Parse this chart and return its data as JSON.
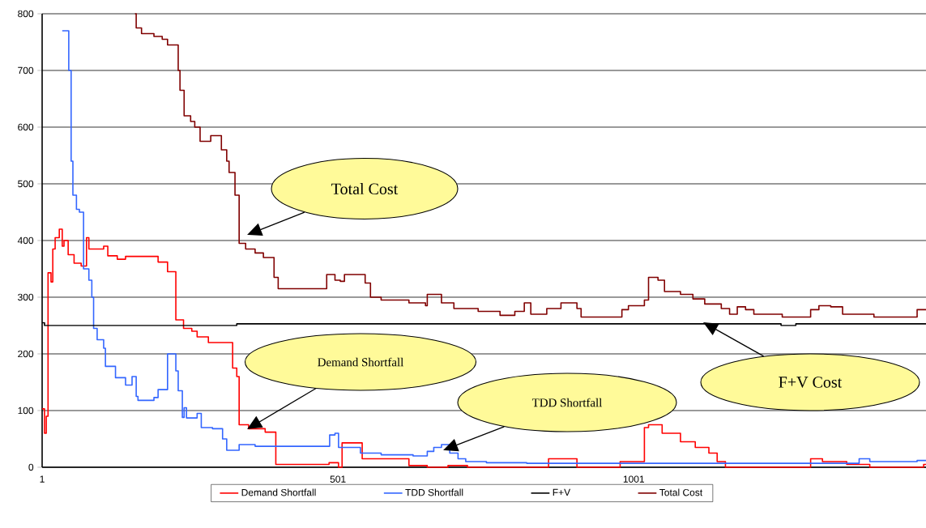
{
  "chart_data": {
    "type": "step",
    "xlim": [
      1,
      1495
    ],
    "ylim": [
      0,
      800
    ],
    "xticks": [
      1,
      501,
      1001
    ],
    "yticks": [
      0,
      100,
      200,
      300,
      400,
      500,
      600,
      700,
      800
    ],
    "grid": "y",
    "legend": "bottom",
    "series": [
      {
        "name": "Demand Shortfall",
        "color": "#ff0000",
        "x": [
          1,
          5,
          8,
          11,
          16,
          19,
          23,
          30,
          35,
          38,
          45,
          55,
          67,
          76,
          80,
          105,
          112,
          128,
          142,
          193,
          197,
          213,
          227,
          240,
          254,
          263,
          282,
          317,
          323,
          330,
          334,
          350,
          378,
          396,
          478,
          486,
          502,
          508,
          542,
          621,
          652,
          687,
          720,
          857,
          905,
          978,
          1019,
          1026,
          1049,
          1080,
          1105,
          1128,
          1142,
          1156,
          1300,
          1320,
          1361,
          1400,
          1491,
          1495
        ],
        "values": [
          103,
          60,
          90,
          343,
          327,
          385,
          405,
          420,
          390,
          400,
          375,
          360,
          355,
          405,
          385,
          390,
          373,
          367,
          372,
          372,
          362,
          345,
          260,
          245,
          240,
          230,
          220,
          220,
          175,
          160,
          75,
          68,
          62,
          5,
          5,
          8,
          0,
          43,
          15,
          3,
          0,
          3,
          0,
          15,
          0,
          10,
          70,
          75,
          60,
          45,
          35,
          25,
          10,
          0,
          15,
          10,
          5,
          0,
          5,
          5
        ]
      },
      {
        "name": "TDD Shortfall",
        "color": "#3366ff",
        "x": [
          35,
          46,
          50,
          53,
          59,
          64,
          71,
          80,
          85,
          88,
          94,
          105,
          108,
          125,
          142,
          153,
          160,
          163,
          190,
          197,
          213,
          227,
          231,
          238,
          241,
          245,
          263,
          270,
          289,
          306,
          313,
          334,
          361,
          478,
          487,
          496,
          502,
          539,
          574,
          628,
          652,
          663,
          676,
          690,
          704,
          717,
          752,
          820,
          1382,
          1400,
          1480,
          1495
        ],
        "values": [
          770,
          700,
          540,
          480,
          455,
          450,
          350,
          330,
          300,
          245,
          225,
          210,
          178,
          158,
          145,
          160,
          125,
          118,
          123,
          137,
          200,
          170,
          135,
          88,
          105,
          87,
          95,
          70,
          68,
          50,
          30,
          40,
          37,
          37,
          57,
          60,
          35,
          25,
          22,
          20,
          28,
          35,
          40,
          25,
          15,
          10,
          8,
          7,
          15,
          10,
          12,
          12
        ]
      },
      {
        "name": "F+V",
        "color": "#000000",
        "x": [
          1,
          5,
          330,
          1250,
          1275,
          1495
        ],
        "values": [
          255,
          250,
          253,
          250,
          253,
          253
        ]
      },
      {
        "name": "Total Cost",
        "color": "#800000",
        "x": [
          158,
          160,
          169,
          190,
          204,
          213,
          231,
          234,
          241,
          252,
          259,
          268,
          286,
          304,
          313,
          317,
          327,
          334,
          345,
          361,
          375,
          393,
          400,
          478,
          482,
          496,
          505,
          512,
          537,
          547,
          556,
          574,
          621,
          649,
          652,
          676,
          697,
          738,
          775,
          800,
          816,
          827,
          854,
          878,
          905,
          912,
          978,
          981,
          992,
          1019,
          1026,
          1042,
          1053,
          1080,
          1101,
          1121,
          1149,
          1163,
          1176,
          1190,
          1204,
          1252,
          1300,
          1314,
          1334,
          1354,
          1407,
          1480,
          1495
        ],
        "values": [
          800,
          775,
          765,
          760,
          755,
          745,
          700,
          665,
          620,
          610,
          600,
          575,
          585,
          560,
          540,
          520,
          480,
          395,
          385,
          378,
          370,
          335,
          315,
          315,
          340,
          330,
          328,
          340,
          340,
          325,
          300,
          295,
          290,
          285,
          305,
          290,
          280,
          275,
          268,
          275,
          290,
          270,
          280,
          290,
          280,
          265,
          265,
          278,
          285,
          295,
          335,
          330,
          310,
          305,
          297,
          288,
          280,
          270,
          283,
          278,
          270,
          265,
          278,
          285,
          283,
          270,
          265,
          278,
          278
        ]
      }
    ],
    "annotations": [
      "Total Cost",
      "Demand Shortfall",
      "TDD Shortfall",
      "F+V Cost"
    ]
  }
}
